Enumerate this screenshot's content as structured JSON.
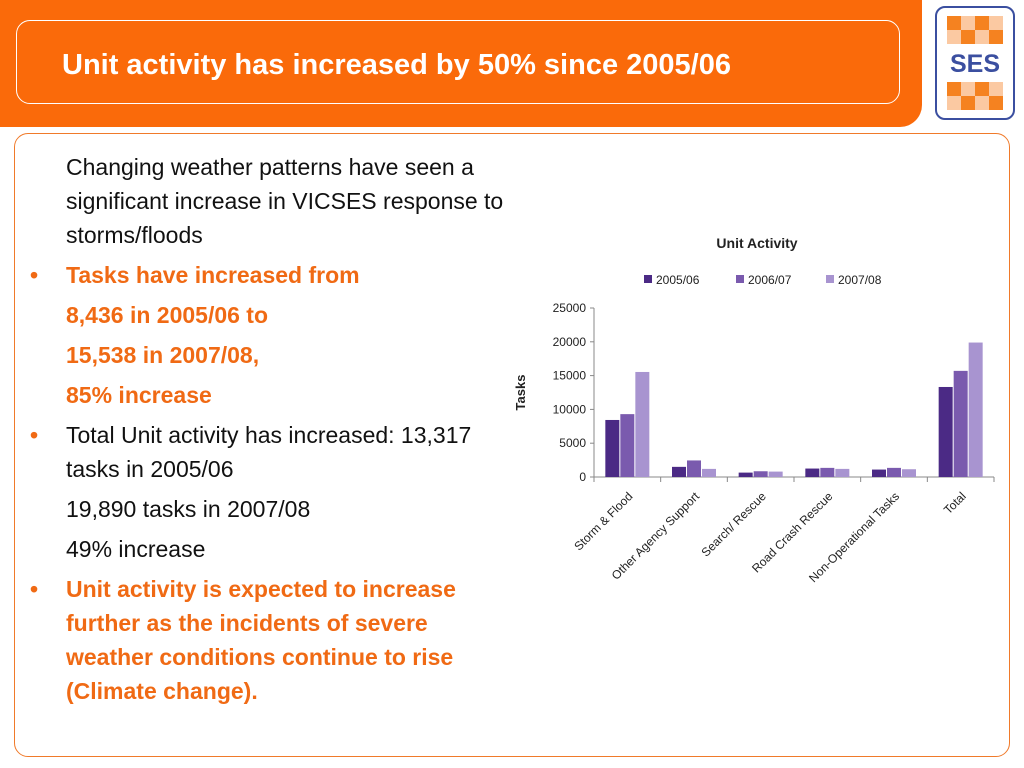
{
  "slide": {
    "title": "Unit activity has increased by 50% since 2005/06",
    "logo_text": "SES"
  },
  "body": {
    "intro": "Changing weather patterns have seen a significant increase in VICSES response to storms/floods",
    "bullet_char": "•",
    "bullet1": {
      "line1": "Tasks have increased from",
      "line2": "8,436 in 2005/06 to",
      "line3": "15,538 in 2007/08,",
      "line4": "85% increase"
    },
    "bullet2": {
      "line1": "Total Unit activity has increased: 13,317 tasks in 2005/06",
      "line2": "19,890 tasks in 2007/08",
      "line3": "49% increase"
    },
    "bullet3": "Unit activity is expected to increase further as the incidents of severe weather conditions continue to rise (Climate change)."
  },
  "colors": {
    "accent_orange": "#fa6a0a",
    "bullet_orange": "#f06a14",
    "logo_blue": "#3b4fa0"
  },
  "chart_data": {
    "type": "bar",
    "title": "Unit Activity",
    "ylabel": "Tasks",
    "xlabel": "",
    "ylim": [
      0,
      25000
    ],
    "yticks": [
      0,
      5000,
      10000,
      15000,
      20000,
      25000
    ],
    "legend_position": "top",
    "grid": false,
    "categories": [
      "Storm & Flood",
      "Other Agency Support",
      "Search/ Rescue",
      "Road Crash Rescue",
      "Non-Operational Tasks",
      "Total"
    ],
    "series": [
      {
        "name": "2005/06",
        "color": "#4b2a85",
        "values": [
          8436,
          1500,
          650,
          1250,
          1100,
          13317
        ]
      },
      {
        "name": "2006/07",
        "color": "#7a5aae",
        "values": [
          9300,
          2450,
          850,
          1350,
          1350,
          15700
        ]
      },
      {
        "name": "2007/08",
        "color": "#a894d0",
        "values": [
          15538,
          1200,
          800,
          1200,
          1150,
          19890
        ]
      }
    ]
  }
}
